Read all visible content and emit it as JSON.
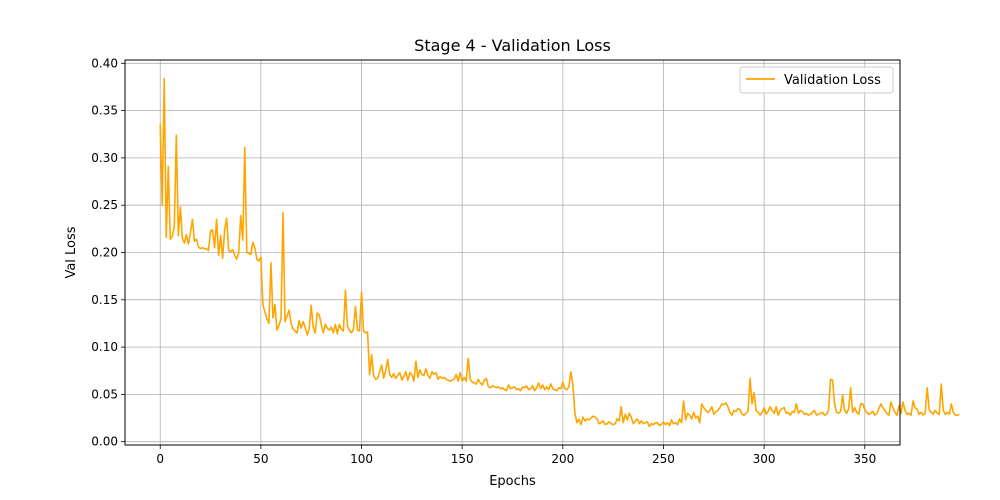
{
  "chart_data": {
    "type": "line",
    "title": "Stage 4 - Validation Loss",
    "xlabel": "Epochs",
    "ylabel": "Val Loss",
    "xlim": [
      -17.5,
      367.5
    ],
    "ylim": [
      -0.0035,
      0.4035
    ],
    "xticks": [
      0,
      50,
      100,
      150,
      200,
      250,
      300,
      350
    ],
    "xtick_labels": [
      "0",
      "50",
      "100",
      "150",
      "200",
      "250",
      "300",
      "350"
    ],
    "yticks": [
      0.0,
      0.05,
      0.1,
      0.15,
      0.2,
      0.25,
      0.3,
      0.35,
      0.4
    ],
    "ytick_labels": [
      "0.00",
      "0.05",
      "0.10",
      "0.15",
      "0.20",
      "0.25",
      "0.30",
      "0.35",
      "0.40"
    ],
    "grid": true,
    "legend": {
      "position": "top-right",
      "entries": [
        "Validation Loss"
      ]
    },
    "series": [
      {
        "name": "Validation Loss",
        "color": "#ffa500",
        "x_start": 0,
        "x_step": 1,
        "values": [
          0.336,
          0.25,
          0.384,
          0.216,
          0.291,
          0.214,
          0.217,
          0.228,
          0.324,
          0.218,
          0.248,
          0.215,
          0.21,
          0.219,
          0.209,
          0.221,
          0.235,
          0.212,
          0.214,
          0.206,
          0.204,
          0.205,
          0.204,
          0.204,
          0.202,
          0.223,
          0.224,
          0.205,
          0.235,
          0.197,
          0.218,
          0.194,
          0.224,
          0.236,
          0.202,
          0.201,
          0.203,
          0.197,
          0.193,
          0.2,
          0.239,
          0.213,
          0.311,
          0.2,
          0.199,
          0.198,
          0.211,
          0.205,
          0.193,
          0.191,
          0.195,
          0.145,
          0.137,
          0.13,
          0.125,
          0.189,
          0.131,
          0.145,
          0.118,
          0.123,
          0.13,
          0.242,
          0.127,
          0.133,
          0.139,
          0.125,
          0.119,
          0.117,
          0.115,
          0.128,
          0.12,
          0.127,
          0.121,
          0.113,
          0.119,
          0.144,
          0.121,
          0.115,
          0.136,
          0.134,
          0.124,
          0.115,
          0.124,
          0.12,
          0.118,
          0.121,
          0.115,
          0.124,
          0.114,
          0.124,
          0.119,
          0.117,
          0.16,
          0.122,
          0.118,
          0.115,
          0.119,
          0.143,
          0.118,
          0.117,
          0.158,
          0.117,
          0.115,
          0.116,
          0.071,
          0.092,
          0.07,
          0.066,
          0.067,
          0.074,
          0.081,
          0.067,
          0.075,
          0.087,
          0.071,
          0.068,
          0.072,
          0.067,
          0.07,
          0.073,
          0.065,
          0.069,
          0.074,
          0.065,
          0.073,
          0.071,
          0.064,
          0.085,
          0.068,
          0.076,
          0.071,
          0.07,
          0.077,
          0.07,
          0.067,
          0.074,
          0.071,
          0.073,
          0.066,
          0.069,
          0.067,
          0.068,
          0.066,
          0.065,
          0.064,
          0.065,
          0.066,
          0.071,
          0.064,
          0.073,
          0.064,
          0.068,
          0.064,
          0.088,
          0.066,
          0.063,
          0.062,
          0.061,
          0.066,
          0.062,
          0.06,
          0.065,
          0.067,
          0.058,
          0.057,
          0.059,
          0.058,
          0.057,
          0.058,
          0.056,
          0.057,
          0.055,
          0.054,
          0.06,
          0.056,
          0.057,
          0.058,
          0.055,
          0.056,
          0.054,
          0.058,
          0.057,
          0.059,
          0.055,
          0.056,
          0.059,
          0.054,
          0.057,
          0.062,
          0.056,
          0.06,
          0.055,
          0.058,
          0.055,
          0.061,
          0.056,
          0.055,
          0.054,
          0.057,
          0.056,
          0.063,
          0.056,
          0.055,
          0.058,
          0.074,
          0.06,
          0.03,
          0.02,
          0.024,
          0.018,
          0.026,
          0.022,
          0.024,
          0.023,
          0.025,
          0.027,
          0.026,
          0.024,
          0.019,
          0.02,
          0.022,
          0.018,
          0.019,
          0.021,
          0.019,
          0.018,
          0.019,
          0.024,
          0.022,
          0.037,
          0.02,
          0.029,
          0.023,
          0.03,
          0.026,
          0.019,
          0.022,
          0.024,
          0.019,
          0.022,
          0.019,
          0.02,
          0.021,
          0.016,
          0.019,
          0.018,
          0.02,
          0.02,
          0.017,
          0.018,
          0.021,
          0.018,
          0.02,
          0.017,
          0.023,
          0.019,
          0.02,
          0.018,
          0.024,
          0.02,
          0.043,
          0.023,
          0.03,
          0.028,
          0.024,
          0.031,
          0.025,
          0.027,
          0.02,
          0.04,
          0.036,
          0.033,
          0.031,
          0.033,
          0.037,
          0.029,
          0.032,
          0.033,
          0.036,
          0.04,
          0.039,
          0.041,
          0.037,
          0.031,
          0.028,
          0.033,
          0.032,
          0.035,
          0.034,
          0.029,
          0.028,
          0.03,
          0.032,
          0.067,
          0.04,
          0.052,
          0.033,
          0.031,
          0.028,
          0.031,
          0.036,
          0.029,
          0.032,
          0.037,
          0.033,
          0.03,
          0.037,
          0.028,
          0.033,
          0.035,
          0.036,
          0.03,
          0.031,
          0.028,
          0.032,
          0.031,
          0.04,
          0.03,
          0.033,
          0.032,
          0.029,
          0.03,
          0.028,
          0.029,
          0.031,
          0.033,
          0.028,
          0.029,
          0.03,
          0.031,
          0.028,
          0.029,
          0.033,
          0.066,
          0.065,
          0.04,
          0.031,
          0.03,
          0.032,
          0.049,
          0.033,
          0.03,
          0.035,
          0.057,
          0.031,
          0.036,
          0.031,
          0.029,
          0.04,
          0.04,
          0.034,
          0.031,
          0.029,
          0.03,
          0.032,
          0.028,
          0.03,
          0.035,
          0.04,
          0.036,
          0.033,
          0.03,
          0.028,
          0.042,
          0.036,
          0.031,
          0.028,
          0.038,
          0.03,
          0.042,
          0.033,
          0.029,
          0.03,
          0.028,
          0.043,
          0.036,
          0.034,
          0.029,
          0.031,
          0.028,
          0.03,
          0.057,
          0.034,
          0.031,
          0.029,
          0.033,
          0.03,
          0.029,
          0.061,
          0.033,
          0.029,
          0.031,
          0.029,
          0.04,
          0.031,
          0.028,
          0.028,
          0.029
        ]
      }
    ]
  }
}
